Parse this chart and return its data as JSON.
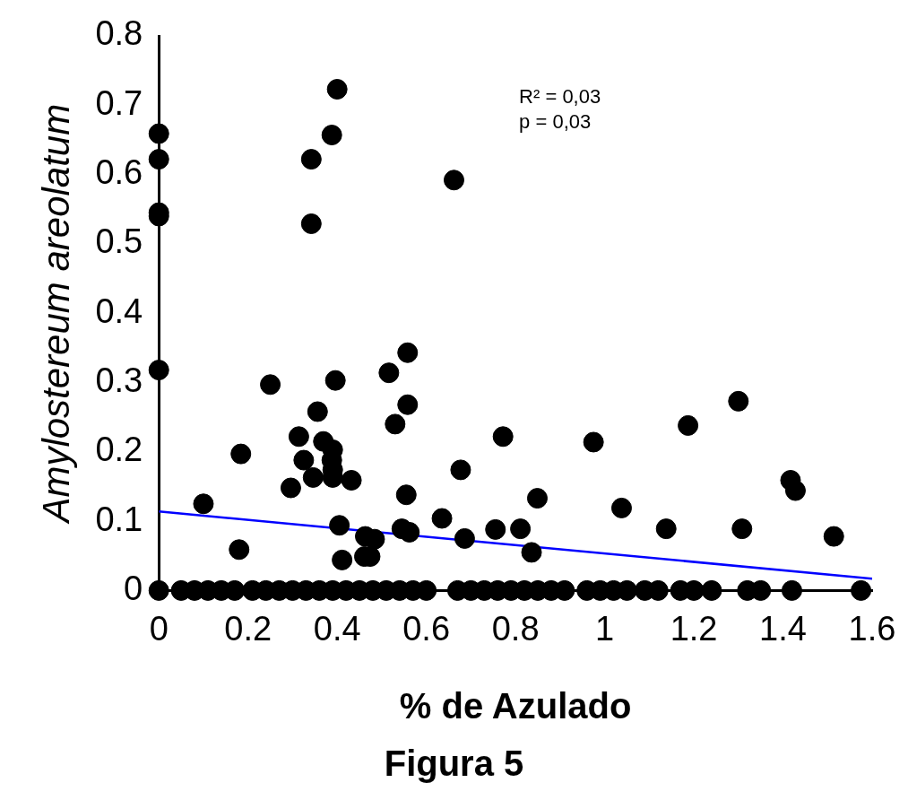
{
  "chart_data": {
    "type": "scatter",
    "title": "Figura 5",
    "xlabel": "% de Azulado",
    "ylabel": "Amylostereum areolatum",
    "annotations": [
      "R² = 0,03",
      "p = 0,03"
    ],
    "marker": "circle",
    "xlim": [
      0,
      1.6
    ],
    "xticks": [
      0,
      0.2,
      0.4,
      0.6,
      0.8,
      1,
      1.2,
      1.4,
      1.6
    ],
    "ylim": [
      0,
      0.8
    ],
    "yticks": [
      0,
      0.1,
      0.2,
      0.3,
      0.4,
      0.5,
      0.6,
      0.7,
      0.8
    ],
    "series": [
      {
        "color": "#000000",
        "x": [
          0,
          0,
          0,
          0,
          0,
          0.342,
          0.388,
          0.4,
          0.342,
          0.662,
          0.25,
          0.1,
          0.184,
          0.18,
          0.296,
          0.314,
          0.325,
          0.346,
          0.356,
          0.369,
          0.39,
          0.388,
          0.39,
          0.39,
          0.396,
          0.432,
          0.405,
          0.411,
          0.463,
          0.484,
          0.461,
          0.474,
          0.516,
          0.558,
          0.558,
          0.53,
          0.555,
          0.545,
          0.562,
          0.677,
          0.635,
          0.686,
          0.772,
          0.755,
          0.811,
          0.849,
          0.836,
          0.975,
          1.038,
          1.138,
          1.187,
          1.3,
          1.308,
          1.417,
          1.428,
          1.514,
          0,
          0.05,
          0.08,
          0.11,
          0.14,
          0.17,
          0.21,
          0.24,
          0.27,
          0.3,
          0.33,
          0.36,
          0.39,
          0.42,
          0.45,
          0.48,
          0.51,
          0.54,
          0.57,
          0.6,
          0.67,
          0.7,
          0.73,
          0.76,
          0.79,
          0.82,
          0.85,
          0.88,
          0.91,
          0.96,
          0.99,
          1.02,
          1.05,
          1.09,
          1.12,
          1.17,
          1.2,
          1.24,
          1.32,
          1.35,
          1.42,
          1.575
        ],
        "values": [
          0.659,
          0.622,
          0.545,
          0.54,
          0.318,
          0.622,
          0.657,
          0.723,
          0.529,
          0.592,
          0.297,
          0.125,
          0.197,
          0.059,
          0.148,
          0.222,
          0.188,
          0.163,
          0.258,
          0.215,
          0.203,
          0.188,
          0.174,
          0.163,
          0.303,
          0.159,
          0.094,
          0.044,
          0.078,
          0.074,
          0.049,
          0.049,
          0.314,
          0.343,
          0.268,
          0.24,
          0.138,
          0.089,
          0.084,
          0.174,
          0.104,
          0.075,
          0.222,
          0.088,
          0.089,
          0.133,
          0.055,
          0.214,
          0.119,
          0.089,
          0.238,
          0.273,
          0.089,
          0.159,
          0.144,
          0.078,
          0,
          0,
          0,
          0,
          0,
          0,
          0,
          0,
          0,
          0,
          0,
          0,
          0,
          0,
          0,
          0,
          0,
          0,
          0,
          0,
          0,
          0,
          0,
          0,
          0,
          0,
          0,
          0,
          0,
          0,
          0,
          0,
          0,
          0,
          0,
          0,
          0,
          0,
          0,
          0,
          0,
          0
        ]
      },
      {
        "type": "line",
        "marker": "none",
        "color": "#0000ff",
        "x": [
          0,
          1.6
        ],
        "values": [
          0.114,
          0.017
        ]
      }
    ]
  }
}
